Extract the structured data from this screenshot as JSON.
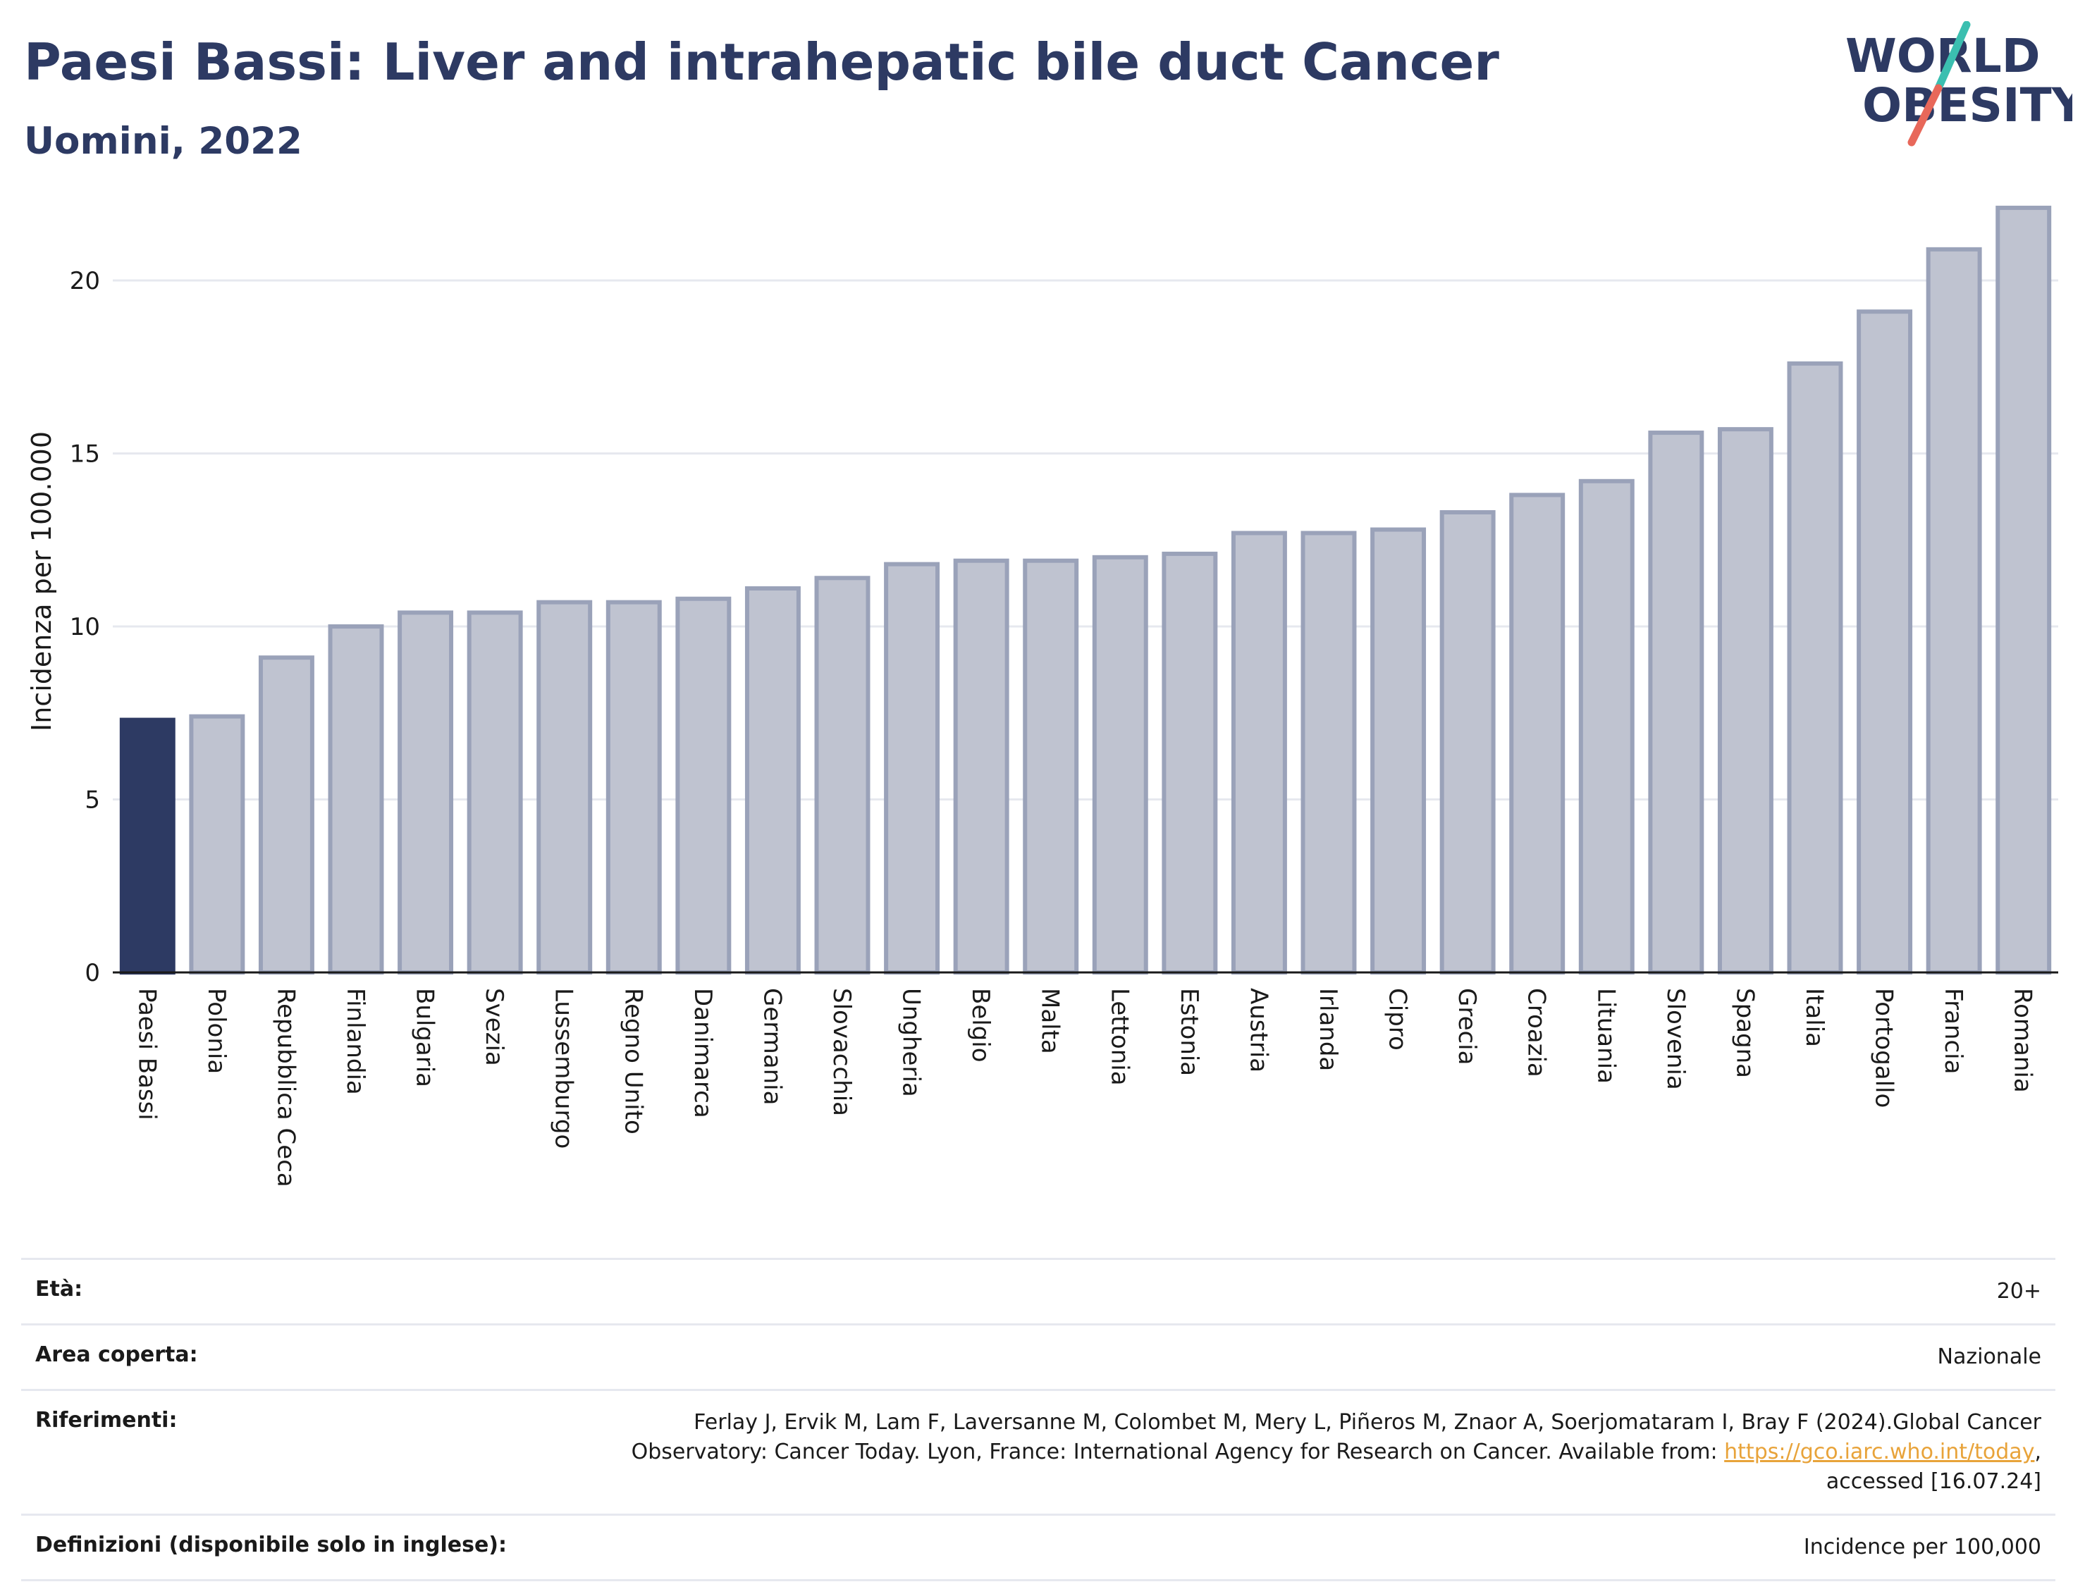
{
  "header": {
    "title": "Paesi Bassi: Liver and intrahepatic bile duct Cancer",
    "subtitle": "Uomini, 2022"
  },
  "logo": {
    "line1": "WORLD",
    "line2": "OBESITY",
    "text_color": "#2d3a63",
    "slash_color_top": "#3bbfb0",
    "slash_color_bottom": "#e8685a"
  },
  "chart_data": {
    "type": "bar",
    "title": "",
    "xlabel": "",
    "ylabel": "Incidenza per 100.000",
    "ylim": [
      0,
      22.2
    ],
    "yticks": [
      0,
      5,
      10,
      15,
      20
    ],
    "grid": true,
    "highlight_color": "#2d3a63",
    "bar_color": "#bfc3d0",
    "bar_edge_color": "#9aa2b9",
    "categories": [
      "Paesi Bassi",
      "Polonia",
      "Repubblica Ceca",
      "Finlandia",
      "Bulgaria",
      "Svezia",
      "Lussemburgo",
      "Regno Unito",
      "Danimarca",
      "Germania",
      "Slovacchia",
      "Ungheria",
      "Belgio",
      "Malta",
      "Lettonia",
      "Estonia",
      "Austria",
      "Irlanda",
      "Cipro",
      "Grecia",
      "Croazia",
      "Lituania",
      "Slovenia",
      "Spagna",
      "Italia",
      "Portogallo",
      "Francia",
      "Romania"
    ],
    "values": [
      7.3,
      7.4,
      9.1,
      10.0,
      10.4,
      10.4,
      10.7,
      10.7,
      10.8,
      11.1,
      11.4,
      11.8,
      11.9,
      11.9,
      12.0,
      12.1,
      12.7,
      12.7,
      12.8,
      13.3,
      13.8,
      14.2,
      15.6,
      15.7,
      17.6,
      19.1,
      20.9,
      22.1
    ],
    "highlight_index": 0
  },
  "info": {
    "rows": [
      {
        "label": "Età:",
        "value": "20+"
      },
      {
        "label": "Area coperta:",
        "value": "Nazionale"
      },
      {
        "label": "Riferimenti:",
        "value_line1": "Ferlay J, Ervik M, Lam F, Laversanne M, Colombet M, Mery L, Piñeros M, Znaor A, Soerjomataram I, Bray F (2024).Global Cancer",
        "value_line2_prefix": "Observatory: Cancer Today. Lyon, France: International Agency for Research on Cancer. Available from: ",
        "link_text": "https://gco.iarc.who.int/today",
        "value_line2_suffix": ",",
        "value_line3": "accessed [16.07.24]"
      },
      {
        "label": "Definizioni (disponibile solo in inglese):",
        "value": "Incidence per 100,000"
      }
    ]
  }
}
